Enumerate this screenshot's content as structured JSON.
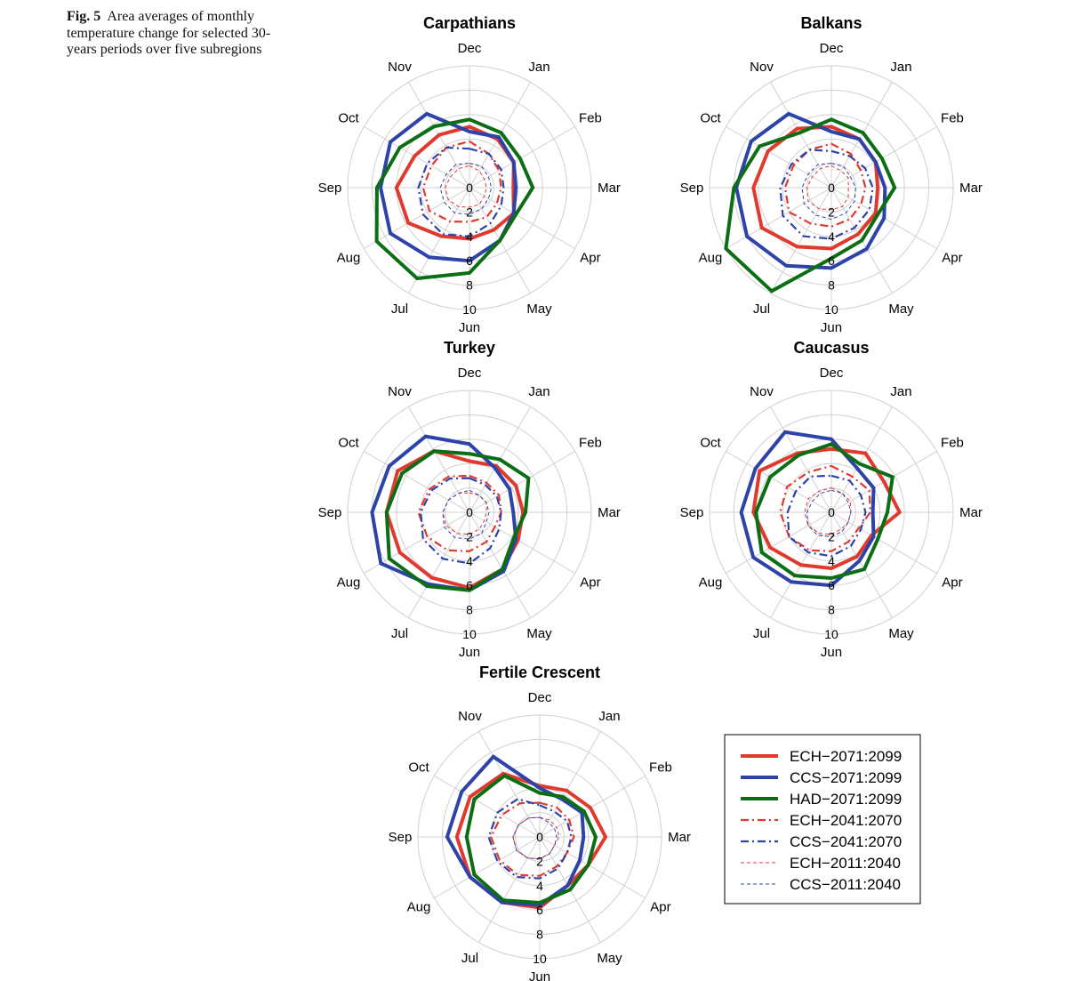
{
  "caption": {
    "label": "Fig. 5",
    "text": "Area averages of monthly temperature change for selected 30-years periods over five subregions"
  },
  "series_styles": [
    {
      "name": "ECH−2071:2099",
      "color": "#e03a2f",
      "width": 4,
      "dash": ""
    },
    {
      "name": "CCS−2071:2099",
      "color": "#2e43a8",
      "width": 4,
      "dash": ""
    },
    {
      "name": "HAD−2071:2099",
      "color": "#0b6e14",
      "width": 4,
      "dash": ""
    },
    {
      "name": "ECH−2041:2070",
      "color": "#e03a2f",
      "width": 2.2,
      "dash": "9 4 2 4"
    },
    {
      "name": "CCS−2041:2070",
      "color": "#2e43a8",
      "width": 2.2,
      "dash": "9 4 2 4"
    },
    {
      "name": "ECH−2011:2040",
      "color": "#e03a2f",
      "width": 1,
      "dash": "4 3"
    },
    {
      "name": "CCS−2011:2040",
      "color": "#2e43a8",
      "width": 1,
      "dash": "4 3"
    }
  ],
  "chart_data": [
    {
      "type": "radar",
      "title": "Carpathians",
      "categories": [
        "Dec",
        "Jan",
        "Feb",
        "Mar",
        "Apr",
        "May",
        "Jun",
        "Jul",
        "Aug",
        "Sep",
        "Oct",
        "Nov"
      ],
      "r_ticks": [
        0,
        2,
        4,
        6,
        8,
        10
      ],
      "rlim": [
        0,
        10
      ],
      "series": [
        {
          "name": "ECH−2071:2099",
          "values": [
            5.0,
            4.6,
            4.2,
            3.6,
            4.2,
            4.0,
            4.2,
            4.6,
            5.8,
            6.0,
            5.2,
            5.0
          ]
        },
        {
          "name": "CCS−2071:2099",
          "values": [
            4.6,
            4.8,
            4.2,
            3.8,
            4.2,
            5.0,
            6.0,
            6.6,
            7.5,
            7.3,
            7.5,
            7.0
          ]
        },
        {
          "name": "HAD−2071:2099",
          "values": [
            5.6,
            5.2,
            4.8,
            5.2,
            4.4,
            5.0,
            7.0,
            8.6,
            8.8,
            7.6,
            6.6,
            5.8
          ]
        },
        {
          "name": "ECH−2041:2070",
          "values": [
            3.8,
            3.2,
            2.8,
            2.6,
            2.6,
            2.8,
            2.8,
            3.2,
            3.8,
            3.8,
            3.6,
            3.8
          ]
        },
        {
          "name": "CCS−2041:2070",
          "values": [
            3.2,
            3.2,
            3.0,
            2.8,
            3.0,
            3.4,
            4.0,
            4.4,
            4.4,
            4.2,
            4.0,
            3.8
          ]
        },
        {
          "name": "ECH−2011:2040",
          "values": [
            1.8,
            1.6,
            1.4,
            1.4,
            1.4,
            1.6,
            1.6,
            1.8,
            2.0,
            2.0,
            1.8,
            1.8
          ]
        },
        {
          "name": "CCS−2011:2040",
          "values": [
            2.0,
            2.0,
            1.8,
            1.8,
            1.8,
            2.0,
            2.2,
            2.4,
            2.4,
            2.4,
            2.2,
            2.2
          ]
        }
      ]
    },
    {
      "type": "radar",
      "title": "Balkans",
      "categories": [
        "Dec",
        "Jan",
        "Feb",
        "Mar",
        "Apr",
        "May",
        "Jun",
        "Jul",
        "Aug",
        "Sep",
        "Oct",
        "Nov"
      ],
      "r_ticks": [
        0,
        2,
        4,
        6,
        8,
        10
      ],
      "rlim": [
        0,
        10
      ],
      "series": [
        {
          "name": "ECH−2071:2099",
          "values": [
            5.0,
            4.6,
            4.2,
            3.8,
            4.2,
            4.4,
            5.0,
            5.6,
            6.6,
            6.4,
            6.0,
            5.6
          ]
        },
        {
          "name": "CCS−2071:2099",
          "values": [
            4.6,
            4.6,
            4.2,
            4.4,
            5.0,
            5.8,
            6.6,
            7.4,
            8.0,
            7.8,
            7.6,
            7.0
          ]
        },
        {
          "name": "HAD−2071:2099",
          "values": [
            5.6,
            5.2,
            4.8,
            5.2,
            4.4,
            5.0,
            5.8,
            9.8,
            10.0,
            8.0,
            6.8,
            5.2
          ]
        },
        {
          "name": "ECH−2041:2070",
          "values": [
            3.6,
            3.2,
            2.8,
            2.8,
            2.8,
            3.0,
            3.2,
            3.4,
            4.0,
            3.8,
            3.6,
            3.6
          ]
        },
        {
          "name": "CCS−2041:2070",
          "values": [
            3.0,
            3.0,
            3.2,
            3.4,
            3.6,
            3.8,
            4.2,
            4.6,
            4.6,
            4.2,
            3.8,
            3.6
          ]
        },
        {
          "name": "ECH−2011:2040",
          "values": [
            1.8,
            1.6,
            1.6,
            1.4,
            1.6,
            1.8,
            1.8,
            2.0,
            2.2,
            2.0,
            1.8,
            1.8
          ]
        },
        {
          "name": "CCS−2011:2040",
          "values": [
            2.0,
            2.0,
            1.8,
            2.0,
            2.2,
            2.4,
            2.6,
            2.6,
            2.6,
            2.4,
            2.2,
            2.2
          ]
        }
      ]
    },
    {
      "type": "radar",
      "title": "Turkey",
      "categories": [
        "Dec",
        "Jan",
        "Feb",
        "Mar",
        "Apr",
        "May",
        "Jun",
        "Jul",
        "Aug",
        "Sep",
        "Oct",
        "Nov"
      ],
      "r_ticks": [
        0,
        2,
        4,
        6,
        8,
        10
      ],
      "rlim": [
        0,
        10
      ],
      "series": [
        {
          "name": "ECH−2071:2099",
          "values": [
            4.2,
            4.4,
            4.4,
            4.4,
            4.6,
            5.4,
            6.2,
            6.2,
            6.6,
            6.8,
            6.8,
            5.8
          ]
        },
        {
          "name": "CCS−2071:2099",
          "values": [
            5.6,
            4.2,
            3.8,
            3.6,
            4.4,
            5.6,
            6.4,
            6.8,
            8.4,
            8.0,
            7.6,
            7.2
          ]
        },
        {
          "name": "HAD−2071:2099",
          "values": [
            4.8,
            5.0,
            5.6,
            4.6,
            4.2,
            5.4,
            6.4,
            7.0,
            7.6,
            6.8,
            6.4,
            5.8
          ]
        },
        {
          "name": "ECH−2041:2070",
          "values": [
            3.0,
            2.8,
            2.8,
            2.6,
            2.4,
            2.8,
            3.2,
            3.6,
            4.0,
            4.2,
            3.8,
            3.4
          ]
        },
        {
          "name": "CCS−2041:2070",
          "values": [
            2.8,
            2.6,
            2.6,
            2.6,
            2.8,
            3.4,
            4.2,
            4.4,
            4.4,
            4.0,
            3.6,
            3.2
          ]
        },
        {
          "name": "ECH−2011:2040",
          "values": [
            1.6,
            1.6,
            1.6,
            1.4,
            1.4,
            1.6,
            1.8,
            2.0,
            2.2,
            2.2,
            2.0,
            1.8
          ]
        },
        {
          "name": "CCS−2011:2040",
          "values": [
            1.8,
            1.6,
            1.6,
            1.6,
            1.6,
            2.0,
            2.2,
            2.4,
            2.4,
            2.2,
            2.0,
            1.8
          ]
        }
      ]
    },
    {
      "type": "radar",
      "title": "Caucasus",
      "categories": [
        "Dec",
        "Jan",
        "Feb",
        "Mar",
        "Apr",
        "May",
        "Jun",
        "Jul",
        "Aug",
        "Sep",
        "Oct",
        "Nov"
      ],
      "r_ticks": [
        0,
        2,
        4,
        6,
        8,
        10
      ],
      "rlim": [
        0,
        10
      ],
      "series": [
        {
          "name": "ECH−2071:2099",
          "values": [
            5.2,
            5.6,
            5.0,
            5.6,
            3.8,
            4.2,
            4.6,
            5.0,
            5.8,
            6.4,
            6.8,
            5.6
          ]
        },
        {
          "name": "CCS−2071:2099",
          "values": [
            6.0,
            4.2,
            4.0,
            3.4,
            4.0,
            4.6,
            6.0,
            6.6,
            7.4,
            7.4,
            7.2,
            7.6
          ]
        },
        {
          "name": "HAD−2071:2099",
          "values": [
            5.6,
            4.6,
            5.8,
            4.6,
            4.4,
            5.4,
            5.4,
            6.0,
            6.6,
            6.2,
            5.8,
            5.4
          ]
        },
        {
          "name": "ECH−2041:2070",
          "values": [
            3.8,
            3.4,
            3.6,
            3.2,
            2.6,
            2.8,
            3.2,
            3.6,
            4.0,
            4.2,
            4.2,
            3.8
          ]
        },
        {
          "name": "CCS−2041:2070",
          "values": [
            3.0,
            3.0,
            2.8,
            2.8,
            2.8,
            3.2,
            3.6,
            3.8,
            4.0,
            3.6,
            3.4,
            3.4
          ]
        },
        {
          "name": "ECH−2011:2040",
          "values": [
            2.0,
            1.8,
            1.8,
            1.6,
            1.6,
            1.6,
            1.8,
            2.0,
            2.2,
            2.2,
            2.2,
            2.0
          ]
        },
        {
          "name": "CCS−2011:2040",
          "values": [
            1.8,
            1.8,
            1.6,
            1.6,
            1.6,
            1.8,
            2.0,
            2.2,
            2.2,
            2.0,
            1.8,
            1.8
          ]
        }
      ]
    },
    {
      "type": "radar",
      "title": "Fertile Crescent",
      "categories": [
        "Dec",
        "Jan",
        "Feb",
        "Mar",
        "Apr",
        "May",
        "Jun",
        "Jul",
        "Aug",
        "Sep",
        "Oct",
        "Nov"
      ],
      "r_ticks": [
        0,
        2,
        4,
        6,
        8,
        10
      ],
      "rlim": [
        0,
        10
      ],
      "series": [
        {
          "name": "ECH−2071:2099",
          "values": [
            4.2,
            4.4,
            4.8,
            5.4,
            4.6,
            4.6,
            5.8,
            6.2,
            6.6,
            6.8,
            6.6,
            6.0
          ]
        },
        {
          "name": "CCS−2071:2099",
          "values": [
            4.0,
            3.6,
            4.0,
            3.6,
            3.8,
            4.6,
            5.6,
            6.2,
            6.6,
            7.6,
            7.4,
            7.6
          ]
        },
        {
          "name": "HAD−2071:2099",
          "values": [
            3.6,
            3.8,
            4.2,
            4.6,
            4.6,
            5.0,
            5.4,
            6.0,
            6.2,
            6.0,
            6.2,
            5.8
          ]
        },
        {
          "name": "ECH−2041:2070",
          "values": [
            2.8,
            2.8,
            2.8,
            2.8,
            2.6,
            2.8,
            3.2,
            3.6,
            3.8,
            4.0,
            3.6,
            3.2
          ]
        },
        {
          "name": "CCS−2041:2070",
          "values": [
            2.6,
            2.4,
            2.6,
            2.6,
            2.6,
            3.0,
            3.4,
            3.8,
            4.0,
            4.2,
            4.0,
            3.6
          ]
        },
        {
          "name": "ECH−2011:2040",
          "values": [
            1.6,
            1.6,
            1.6,
            1.6,
            1.4,
            1.6,
            1.8,
            2.0,
            2.2,
            2.2,
            2.0,
            1.8
          ]
        },
        {
          "name": "CCS−2011:2040",
          "values": [
            1.6,
            1.4,
            1.4,
            1.4,
            1.4,
            1.6,
            1.8,
            2.0,
            2.2,
            2.2,
            2.0,
            1.8
          ]
        }
      ]
    }
  ]
}
